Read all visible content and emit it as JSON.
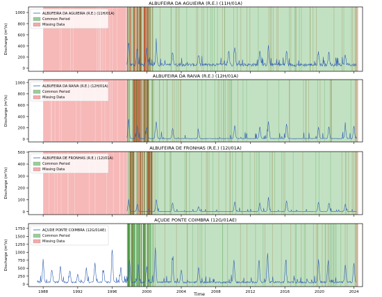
{
  "figure": {
    "xlabel": "Time",
    "ylabel": "Discharge (m³/s)",
    "x_ticks": [
      "1988",
      "1992",
      "1996",
      "2000",
      "2004",
      "2008",
      "2012",
      "2016",
      "2020",
      "2024"
    ],
    "colors": {
      "series": "#2f5fb3",
      "common_period": "#8fc98f",
      "missing_data": "#f4a0a0",
      "missing_dense": "#d9452a",
      "axes": "#000000"
    }
  },
  "chart_data": [
    {
      "type": "line",
      "title": "ALBUFEIRA DA AGUIEIRA (R.E.) (11H/01A)",
      "xlabel": "",
      "ylabel": "Discharge (m³/s)",
      "ylim": [
        -60,
        1100
      ],
      "yticks": [
        0,
        200,
        400,
        600,
        800,
        1000
      ],
      "legend": [
        "ALBUFEIRA DA AGUIEIRA (R.E.) (11H/01A)",
        "Common Period",
        "Missing Data"
      ],
      "legend_position": "top-left",
      "series_start": 1997.7,
      "series_end": 2024.3,
      "baseline": 60,
      "peaks": [
        [
          1997.9,
          420
        ],
        [
          1998.9,
          310
        ],
        [
          2000.0,
          300
        ],
        [
          2001.1,
          350
        ],
        [
          2003.0,
          240
        ],
        [
          2006.0,
          180
        ],
        [
          2009.5,
          260
        ],
        [
          2010.2,
          300
        ],
        [
          2013.1,
          270
        ],
        [
          2014.1,
          330
        ],
        [
          2016.2,
          250
        ],
        [
          2019.9,
          200
        ],
        [
          2021.1,
          220
        ],
        [
          2023.0,
          180
        ]
      ]
    },
    {
      "type": "line",
      "title": "ALBUFEIRA DA RAIVA (R.E.) (12H/01A)",
      "xlabel": "",
      "ylabel": "Discharge (m³/s)",
      "ylim": [
        -50,
        1050
      ],
      "yticks": [
        0,
        200,
        400,
        600,
        800,
        1000
      ],
      "legend": [
        "ALBUFEIRA DA RAIVA (R.E.) (12H/01A)",
        "Common Period",
        "Missing Data"
      ],
      "legend_position": "top-left",
      "series_start": 1997.7,
      "series_end": 2024.3,
      "baseline": 10,
      "peaks": [
        [
          1997.9,
          340
        ],
        [
          1998.9,
          230
        ],
        [
          2000.0,
          200
        ],
        [
          2001.1,
          300
        ],
        [
          2003.0,
          180
        ],
        [
          2006.0,
          120
        ],
        [
          2010.2,
          230
        ],
        [
          2013.1,
          210
        ],
        [
          2014.1,
          300
        ],
        [
          2016.2,
          260
        ],
        [
          2019.9,
          200
        ],
        [
          2021.1,
          210
        ],
        [
          2023.0,
          200
        ],
        [
          2024.0,
          220
        ]
      ]
    },
    {
      "type": "line",
      "title": "ALBUFEIRA DE FRONHAS (R.E.) (12I/01A)",
      "xlabel": "",
      "ylabel": "Discharge (m³/s)",
      "ylim": [
        -25,
        505
      ],
      "yticks": [
        0,
        100,
        200,
        300,
        400,
        500
      ],
      "legend": [
        "ALBUFEIRA DE FRONHAS (R.E.) (12I/01A)",
        "Common Period",
        "Missing Data"
      ],
      "legend_position": "top-left",
      "series_start": 1997.7,
      "series_end": 2024.3,
      "baseline": 2,
      "peaks": [
        [
          1997.9,
          90
        ],
        [
          1998.9,
          60
        ],
        [
          2001.1,
          100
        ],
        [
          2003.0,
          70
        ],
        [
          2006.0,
          40
        ],
        [
          2010.2,
          80
        ],
        [
          2013.1,
          70
        ],
        [
          2014.1,
          110
        ],
        [
          2016.2,
          90
        ],
        [
          2019.9,
          80
        ],
        [
          2021.1,
          70
        ],
        [
          2023.0,
          60
        ]
      ]
    },
    {
      "type": "line",
      "title": "AÇUDE PONTE COIMBRA (12G/01AE)",
      "xlabel": "Time",
      "ylabel": "Discharge (m³/s)",
      "ylim": [
        -80,
        1900
      ],
      "yticks": [
        0,
        250,
        500,
        750,
        1000,
        1250,
        1500,
        1750
      ],
      "legend": [
        "AÇUDE PONTE COIMBRA (12G/01AE)",
        "Common Period",
        "Missing Data"
      ],
      "legend_position": "top-left",
      "series_start": 1987.3,
      "series_end": 2024.3,
      "baseline": 60,
      "peaks": [
        [
          1988.0,
          650
        ],
        [
          1989.0,
          400
        ],
        [
          1990.0,
          520
        ],
        [
          1991.1,
          380
        ],
        [
          1992.0,
          260
        ],
        [
          1993.0,
          450
        ],
        [
          1994.0,
          600
        ],
        [
          1995.0,
          380
        ],
        [
          1996.0,
          1000
        ],
        [
          1997.0,
          480
        ],
        [
          1998.0,
          720
        ],
        [
          1999.0,
          550
        ],
        [
          2000.0,
          480
        ],
        [
          2001.0,
          1100
        ],
        [
          2003.0,
          700
        ],
        [
          2004.0,
          400
        ],
        [
          2006.0,
          450
        ],
        [
          2010.1,
          720
        ],
        [
          2013.0,
          700
        ],
        [
          2014.0,
          900
        ],
        [
          2016.1,
          650
        ],
        [
          2019.9,
          700
        ],
        [
          2021.0,
          620
        ],
        [
          2023.0,
          550
        ],
        [
          2024.0,
          600
        ]
      ]
    }
  ]
}
